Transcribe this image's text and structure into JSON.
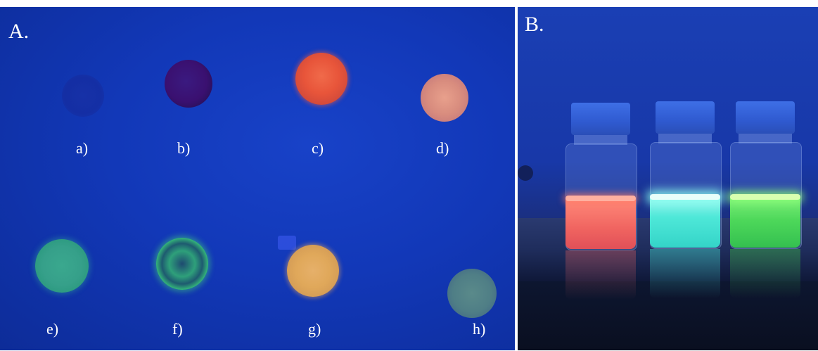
{
  "panel_a": {
    "label": "A.",
    "samples": [
      {
        "label": "a)",
        "glow": "#1a2ea0"
      },
      {
        "label": "b)",
        "glow": "#3a1070"
      },
      {
        "label": "c)",
        "glow": "#e8553a"
      },
      {
        "label": "d)",
        "glow": "#d88c7e"
      },
      {
        "label": "e)",
        "glow": "#36a08a"
      },
      {
        "label": "f)",
        "glow": "#3ad07c"
      },
      {
        "label": "g)",
        "glow": "#e0a85a"
      },
      {
        "label": "h)",
        "glow": "#4f7e86"
      }
    ]
  },
  "panel_b": {
    "label": "B.",
    "vials": [
      {
        "emission": "#f06460"
      },
      {
        "emission": "#4ee8d8"
      },
      {
        "emission": "#4ed85a"
      }
    ]
  },
  "colors": {
    "background_a": "#1238b8",
    "background_b": "#1a3fb4",
    "text": "#ffffff"
  }
}
